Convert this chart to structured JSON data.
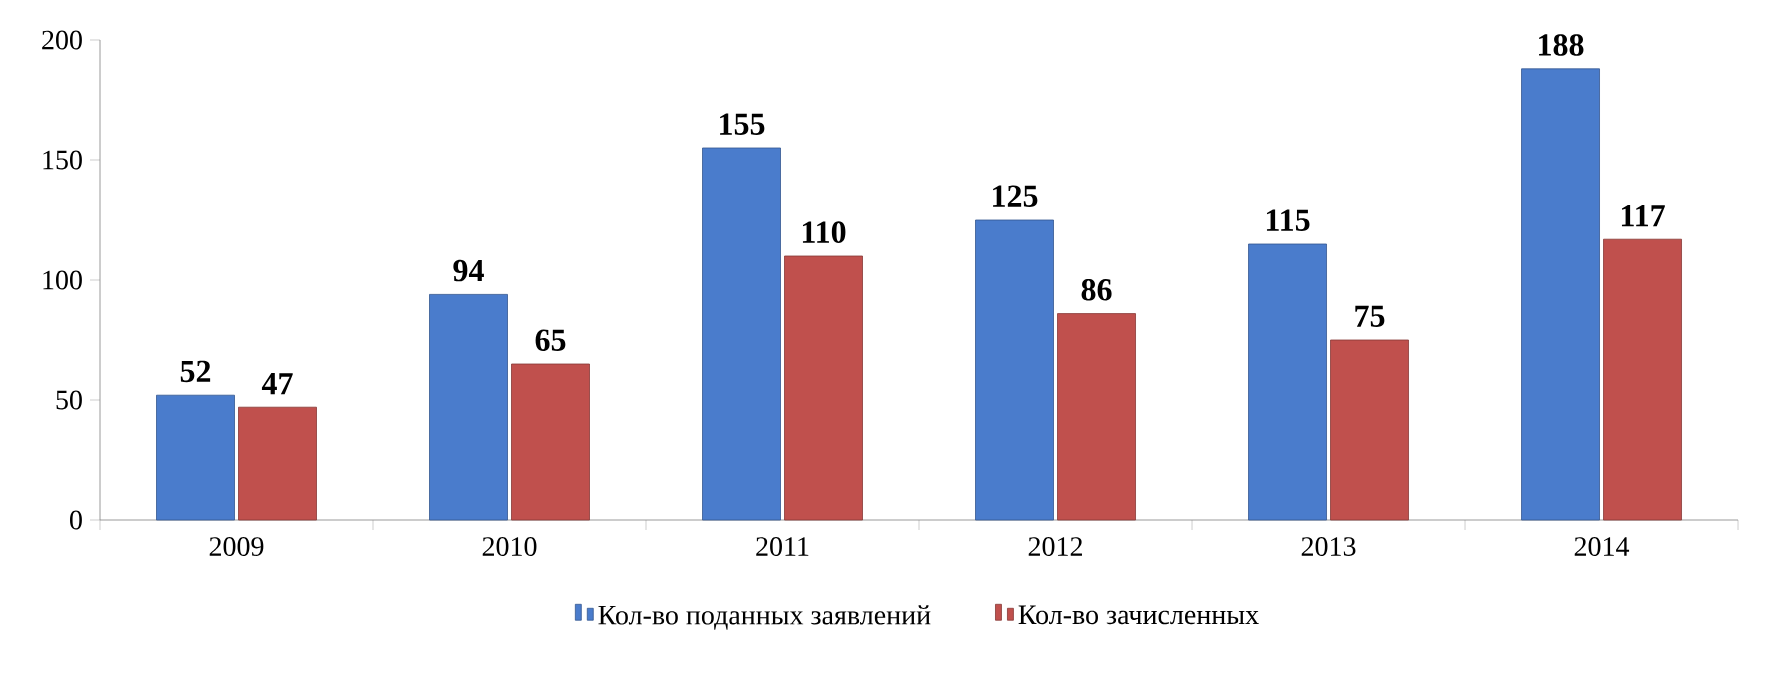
{
  "chart_data": {
    "type": "bar",
    "categories": [
      "2009",
      "2010",
      "2011",
      "2012",
      "2013",
      "2014"
    ],
    "series": [
      {
        "name": "Кол-во поданных заявлений",
        "color": "#4a7ccc",
        "values": [
          52,
          94,
          155,
          125,
          115,
          188
        ]
      },
      {
        "name": "Кол-во зачисленных",
        "color": "#c0504d",
        "values": [
          47,
          65,
          110,
          86,
          75,
          117
        ]
      }
    ],
    "ylim": [
      0,
      200
    ],
    "yticks": [
      0,
      50,
      100,
      150,
      200
    ],
    "data_labels": true,
    "legend": "bottom",
    "grid": false
  }
}
